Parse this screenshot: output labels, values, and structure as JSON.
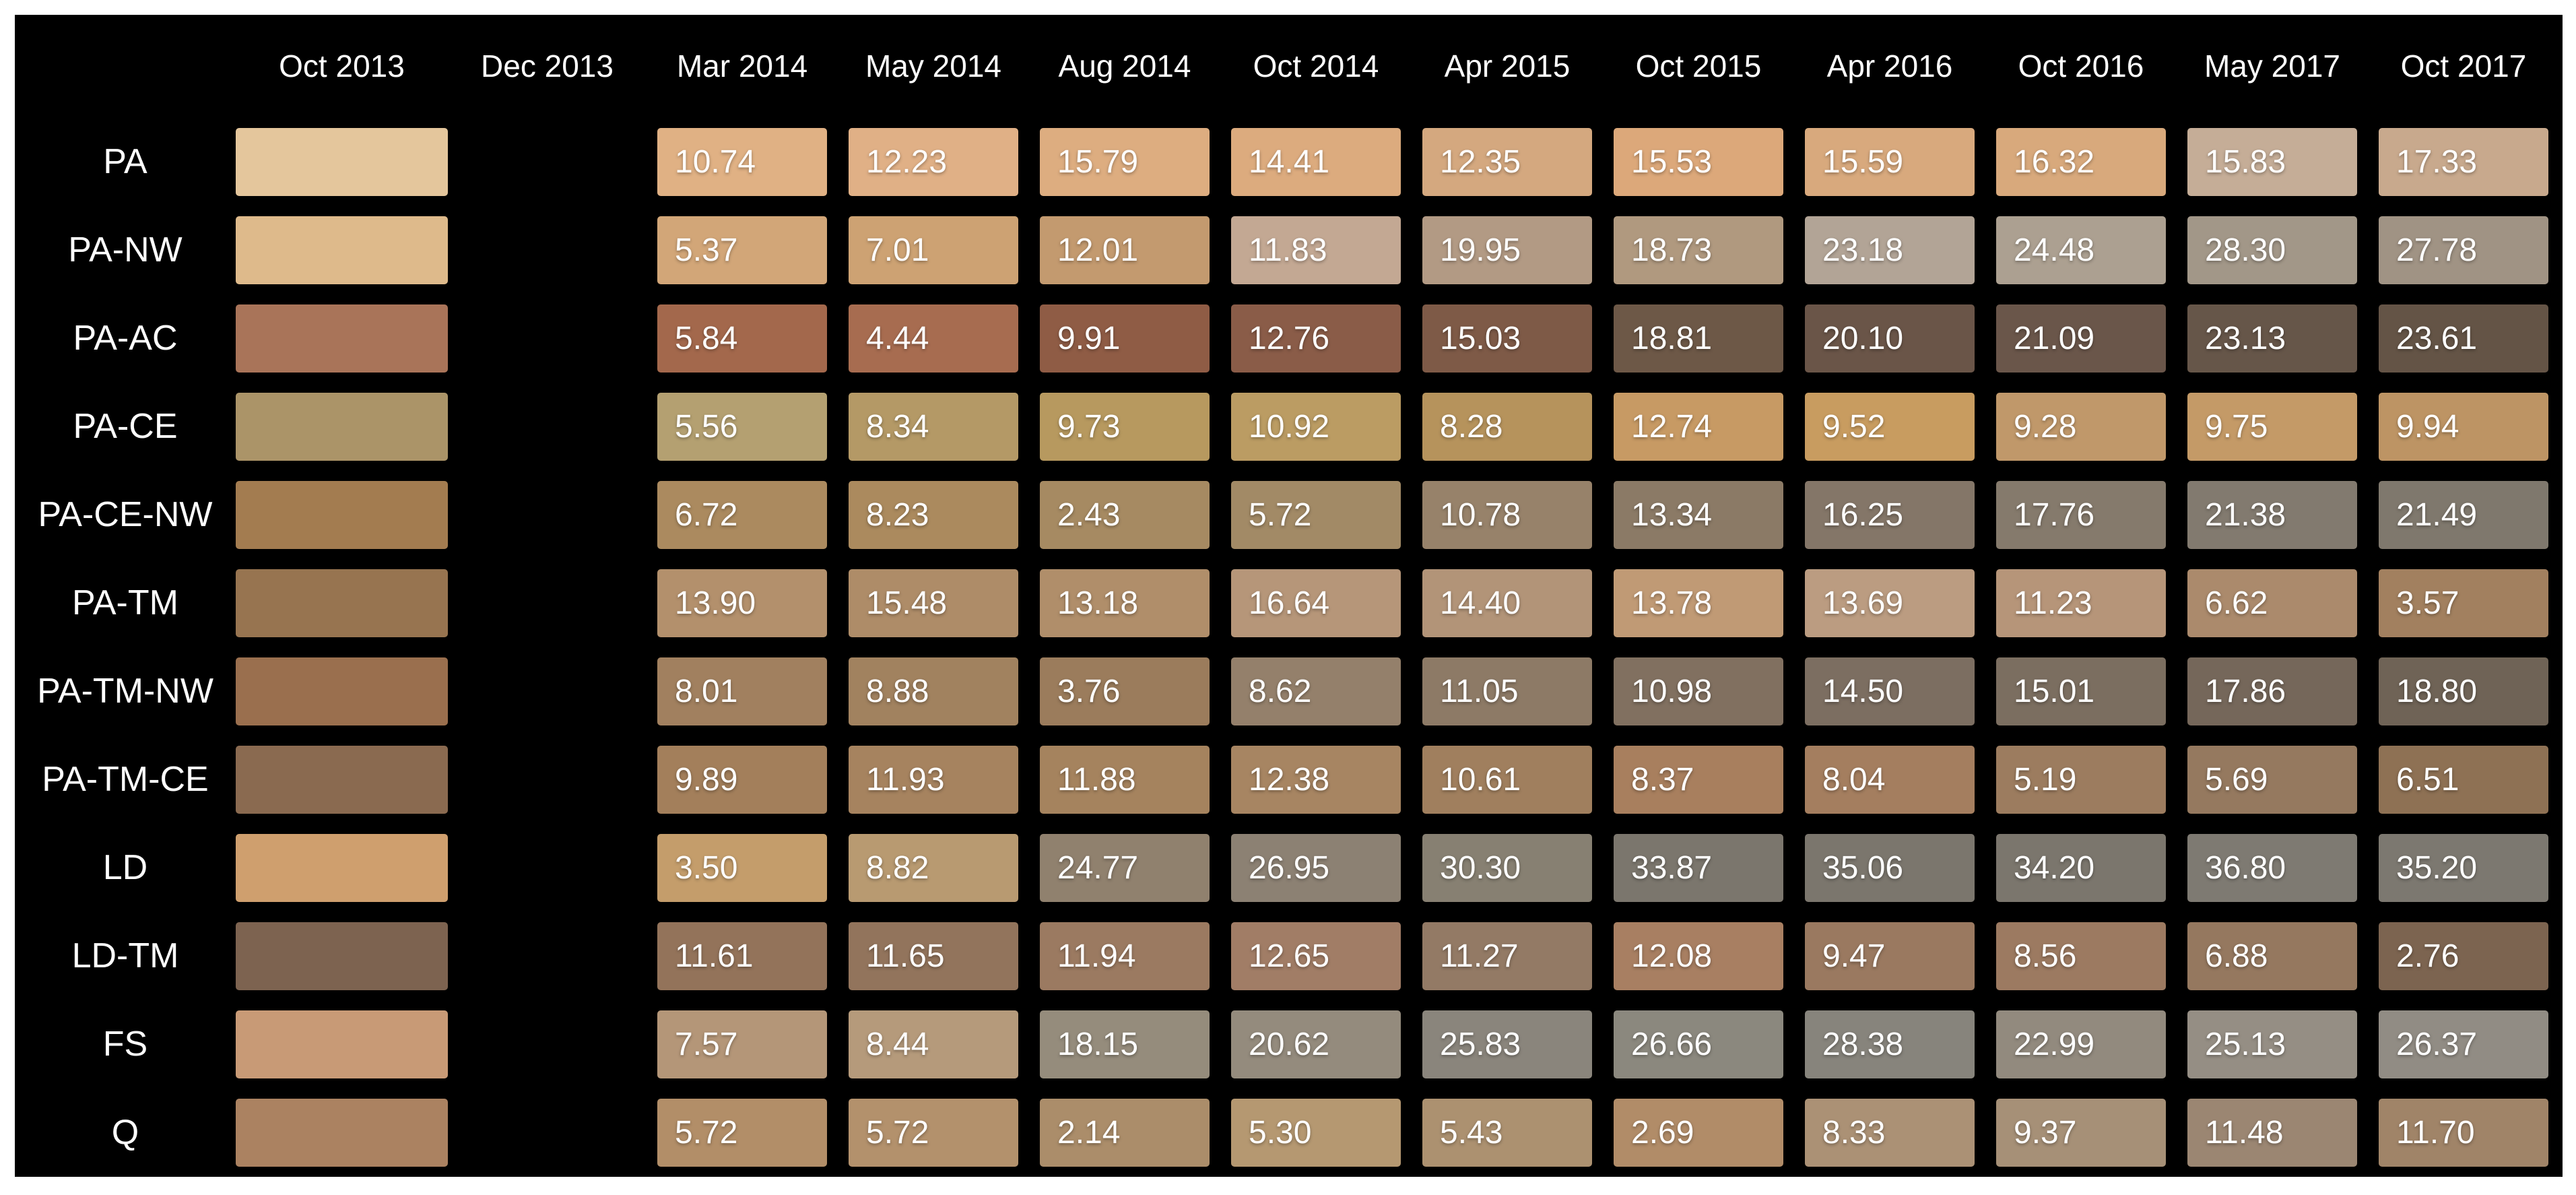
{
  "figure": {
    "background_color": "#000000",
    "frame_color": "#ffffff",
    "text_color": "#ffffff"
  },
  "chart_data": {
    "type": "heatmap",
    "title": "",
    "legend_position": "none",
    "grid": false,
    "columns": [
      "Oct 2013",
      "Dec 2013",
      "Mar 2014",
      "May 2014",
      "Aug 2014",
      "Oct 2014",
      "Apr 2015",
      "Oct 2015",
      "Apr 2016",
      "Oct 2016",
      "May 2017",
      "Oct 2017"
    ],
    "initial_column": "Oct 2013",
    "empty_column": "Dec 2013",
    "value_columns": [
      "Mar 2014",
      "May 2014",
      "Aug 2014",
      "Oct 2014",
      "Apr 2015",
      "Oct 2015",
      "Apr 2016",
      "Oct 2016",
      "May 2017",
      "Oct 2017"
    ],
    "rows": [
      {
        "label": "PA",
        "initial_color": "#e4c69c",
        "values": [
          {
            "v": "10.74",
            "bg": "#e0b184"
          },
          {
            "v": "12.23",
            "bg": "#e0b086"
          },
          {
            "v": "15.79",
            "bg": "#ddad80"
          },
          {
            "v": "14.41",
            "bg": "#dcab7e"
          },
          {
            "v": "12.35",
            "bg": "#d4a87f"
          },
          {
            "v": "15.53",
            "bg": "#dca87a"
          },
          {
            "v": "15.59",
            "bg": "#d8a97d"
          },
          {
            "v": "16.32",
            "bg": "#d8a97c"
          },
          {
            "v": "15.83",
            "bg": "#c5ad97"
          },
          {
            "v": "17.33",
            "bg": "#c8a98d"
          }
        ]
      },
      {
        "label": "PA-NW",
        "initial_color": "#deba8b",
        "values": [
          {
            "v": "5.37",
            "bg": "#d2a678"
          },
          {
            "v": "7.01",
            "bg": "#cda273"
          },
          {
            "v": "12.01",
            "bg": "#c39a6f"
          },
          {
            "v": "11.83",
            "bg": "#c3a893"
          },
          {
            "v": "19.95",
            "bg": "#b29a84"
          },
          {
            "v": "18.73",
            "bg": "#b0997f"
          },
          {
            "v": "23.18",
            "bg": "#b2a496"
          },
          {
            "v": "24.48",
            "bg": "#aca091"
          },
          {
            "v": "28.30",
            "bg": "#a29788"
          },
          {
            "v": "27.78",
            "bg": "#a09384"
          }
        ]
      },
      {
        "label": "PA-AC",
        "initial_color": "#a97459",
        "values": [
          {
            "v": "5.84",
            "bg": "#a3684c"
          },
          {
            "v": "4.44",
            "bg": "#a76c50"
          },
          {
            "v": "9.91",
            "bg": "#8f5c45"
          },
          {
            "v": "12.76",
            "bg": "#8a5c48"
          },
          {
            "v": "15.03",
            "bg": "#7e5a47"
          },
          {
            "v": "18.81",
            "bg": "#6d5847"
          },
          {
            "v": "20.10",
            "bg": "#6a5548"
          },
          {
            "v": "21.09",
            "bg": "#6a564a"
          },
          {
            "v": "23.13",
            "bg": "#665649"
          },
          {
            "v": "23.61",
            "bg": "#645446"
          }
        ]
      },
      {
        "label": "PA-CE",
        "initial_color": "#ab9468",
        "values": [
          {
            "v": "5.56",
            "bg": "#b4a071"
          },
          {
            "v": "8.34",
            "bg": "#b49966"
          },
          {
            "v": "9.73",
            "bg": "#b7995f"
          },
          {
            "v": "10.92",
            "bg": "#bb9c63"
          },
          {
            "v": "8.28",
            "bg": "#b6935c"
          },
          {
            "v": "12.74",
            "bg": "#c79a64"
          },
          {
            "v": "9.52",
            "bg": "#c89c60"
          },
          {
            "v": "9.28",
            "bg": "#c0986a"
          },
          {
            "v": "9.75",
            "bg": "#c49a67"
          },
          {
            "v": "9.94",
            "bg": "#bd9464"
          }
        ]
      },
      {
        "label": "PA-CE-NW",
        "initial_color": "#a37c50",
        "values": [
          {
            "v": "6.72",
            "bg": "#ab8a5f"
          },
          {
            "v": "8.23",
            "bg": "#ab8a5e"
          },
          {
            "v": "2.43",
            "bg": "#a68a62"
          },
          {
            "v": "5.72",
            "bg": "#a28a66"
          },
          {
            "v": "10.78",
            "bg": "#97826a"
          },
          {
            "v": "13.34",
            "bg": "#8b7a66"
          },
          {
            "v": "16.25",
            "bg": "#847668"
          },
          {
            "v": "17.76",
            "bg": "#857a6c"
          },
          {
            "v": "21.38",
            "bg": "#827a6f"
          },
          {
            "v": "21.49",
            "bg": "#7f786d"
          }
        ]
      },
      {
        "label": "PA-TM",
        "initial_color": "#977450",
        "values": [
          {
            "v": "13.90",
            "bg": "#b3906c"
          },
          {
            "v": "15.48",
            "bg": "#ae8c68"
          },
          {
            "v": "13.18",
            "bg": "#b08e6a"
          },
          {
            "v": "16.64",
            "bg": "#b69679"
          },
          {
            "v": "14.40",
            "bg": "#b29478"
          },
          {
            "v": "13.78",
            "bg": "#c09a75"
          },
          {
            "v": "13.69",
            "bg": "#bb9c81"
          },
          {
            "v": "11.23",
            "bg": "#b69579"
          },
          {
            "v": "6.62",
            "bg": "#ab8a6c"
          },
          {
            "v": "3.57",
            "bg": "#a2805f"
          }
        ]
      },
      {
        "label": "PA-TM-NW",
        "initial_color": "#9a6f4e",
        "values": [
          {
            "v": "8.01",
            "bg": "#a1805f"
          },
          {
            "v": "8.88",
            "bg": "#a1825f"
          },
          {
            "v": "3.76",
            "bg": "#9b7c5c"
          },
          {
            "v": "8.62",
            "bg": "#94806b"
          },
          {
            "v": "11.05",
            "bg": "#8d7a66"
          },
          {
            "v": "10.98",
            "bg": "#817060"
          },
          {
            "v": "14.50",
            "bg": "#7c6e61"
          },
          {
            "v": "15.01",
            "bg": "#7b6e60"
          },
          {
            "v": "17.86",
            "bg": "#75675a"
          },
          {
            "v": "18.80",
            "bg": "#6f6356"
          }
        ]
      },
      {
        "label": "PA-TM-CE",
        "initial_color": "#8a6a50",
        "values": [
          {
            "v": "9.89",
            "bg": "#a37f5b"
          },
          {
            "v": "11.93",
            "bg": "#a6835f"
          },
          {
            "v": "11.88",
            "bg": "#a5835e"
          },
          {
            "v": "12.38",
            "bg": "#a78562"
          },
          {
            "v": "10.61",
            "bg": "#a07f5e"
          },
          {
            "v": "8.37",
            "bg": "#a87f5e"
          },
          {
            "v": "8.04",
            "bg": "#a47e5f"
          },
          {
            "v": "5.19",
            "bg": "#9c7c5f"
          },
          {
            "v": "5.69",
            "bg": "#95795f"
          },
          {
            "v": "6.51",
            "bg": "#8e7154"
          }
        ]
      },
      {
        "label": "LD",
        "initial_color": "#cf9f6e",
        "values": [
          {
            "v": "3.50",
            "bg": "#c49d6b"
          },
          {
            "v": "8.82",
            "bg": "#b89a71"
          },
          {
            "v": "24.77",
            "bg": "#90816e"
          },
          {
            "v": "26.95",
            "bg": "#8c8173"
          },
          {
            "v": "30.30",
            "bg": "#878072"
          },
          {
            "v": "33.87",
            "bg": "#7b766d"
          },
          {
            "v": "35.06",
            "bg": "#7b766d"
          },
          {
            "v": "34.20",
            "bg": "#7b766d"
          },
          {
            "v": "36.80",
            "bg": "#7e7a72"
          },
          {
            "v": "35.20",
            "bg": "#7c7870"
          }
        ]
      },
      {
        "label": "LD-TM",
        "initial_color": "#7d6350",
        "values": [
          {
            "v": "11.61",
            "bg": "#93735a"
          },
          {
            "v": "11.65",
            "bg": "#92745c"
          },
          {
            "v": "11.94",
            "bg": "#9b7a61"
          },
          {
            "v": "12.65",
            "bg": "#a17d66"
          },
          {
            "v": "11.27",
            "bg": "#937a65"
          },
          {
            "v": "12.08",
            "bg": "#a87f62"
          },
          {
            "v": "9.47",
            "bg": "#9a7960"
          },
          {
            "v": "8.56",
            "bg": "#9c7a61"
          },
          {
            "v": "6.88",
            "bg": "#95785f"
          },
          {
            "v": "2.76",
            "bg": "#7c6450"
          }
        ]
      },
      {
        "label": "FS",
        "initial_color": "#c89a76",
        "values": [
          {
            "v": "7.57",
            "bg": "#b49678"
          },
          {
            "v": "8.44",
            "bg": "#b59a7b"
          },
          {
            "v": "18.15",
            "bg": "#958c7c"
          },
          {
            "v": "20.62",
            "bg": "#948b7d"
          },
          {
            "v": "25.83",
            "bg": "#8a857c"
          },
          {
            "v": "26.66",
            "bg": "#8b887e"
          },
          {
            "v": "28.38",
            "bg": "#87847c"
          },
          {
            "v": "22.99",
            "bg": "#928a7e"
          },
          {
            "v": "25.13",
            "bg": "#958e84"
          },
          {
            "v": "26.37",
            "bg": "#918c84"
          }
        ]
      },
      {
        "label": "Q",
        "initial_color": "#ab8261",
        "values": [
          {
            "v": "5.72",
            "bg": "#b28e68"
          },
          {
            "v": "5.72",
            "bg": "#b3916c"
          },
          {
            "v": "2.14",
            "bg": "#ab8d6a"
          },
          {
            "v": "5.30",
            "bg": "#b59871"
          },
          {
            "v": "5.43",
            "bg": "#ac9170"
          },
          {
            "v": "2.69",
            "bg": "#b18c68"
          },
          {
            "v": "8.33",
            "bg": "#ab9175"
          },
          {
            "v": "9.37",
            "bg": "#a69077"
          },
          {
            "v": "11.48",
            "bg": "#9b8672"
          },
          {
            "v": "11.70",
            "bg": "#a08468"
          }
        ]
      }
    ]
  }
}
